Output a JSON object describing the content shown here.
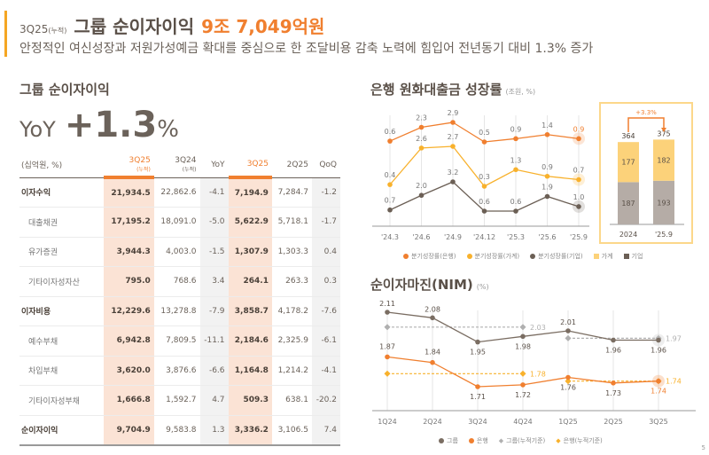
{
  "header": {
    "period": "3Q25",
    "period_note": "(누적)",
    "title": "그룹 순이자이익",
    "value": "9조 7,049억원",
    "subtitle": "안정적인 여신성장과 저원가성예금 확대를 중심으로 한 조달비용 감축 노력에 힘입어 전년동기 대비 1.3% 증가"
  },
  "left": {
    "section_title": "그룹 순이자이익",
    "yoy_label": "YoY",
    "yoy_value": "+1.3",
    "yoy_pct": "%",
    "table": {
      "unit": "(십억원, %)",
      "headers": [
        {
          "label": "3Q25",
          "sub": "(누적)"
        },
        {
          "label": "3Q24",
          "sub": "(누적)"
        },
        {
          "label": "YoY",
          "sub": ""
        },
        {
          "label": "3Q25",
          "sub": ""
        },
        {
          "label": "2Q25",
          "sub": ""
        },
        {
          "label": "QoQ",
          "sub": ""
        }
      ],
      "rows": [
        {
          "label": "이자수익",
          "type": "main",
          "values": [
            "21,934.5",
            "22,862.6",
            "-4.1",
            "7,194.9",
            "7,284.7",
            "-1.2"
          ]
        },
        {
          "label": "대출채권",
          "type": "sub",
          "values": [
            "17,195.2",
            "18,091.0",
            "-5.0",
            "5,622.9",
            "5,718.1",
            "-1.7"
          ]
        },
        {
          "label": "유가증권",
          "type": "sub",
          "values": [
            "3,944.3",
            "4,003.0",
            "-1.5",
            "1,307.9",
            "1,303.3",
            "0.4"
          ]
        },
        {
          "label": "기타이자성자산",
          "type": "sub",
          "values": [
            "795.0",
            "768.6",
            "3.4",
            "264.1",
            "263.3",
            "0.3"
          ]
        },
        {
          "label": "이자비용",
          "type": "main",
          "values": [
            "12,229.6",
            "13,278.8",
            "-7.9",
            "3,858.7",
            "4,178.2",
            "-7.6"
          ]
        },
        {
          "label": "예수부채",
          "type": "sub",
          "values": [
            "6,942.8",
            "7,809.5",
            "-11.1",
            "2,184.6",
            "2,325.9",
            "-6.1"
          ]
        },
        {
          "label": "차입부채",
          "type": "sub",
          "values": [
            "3,620.0",
            "3,876.6",
            "-6.6",
            "1,164.8",
            "1,214.2",
            "-4.1"
          ]
        },
        {
          "label": "기타이자성부채",
          "type": "sub",
          "values": [
            "1,666.8",
            "1,592.7",
            "4.7",
            "509.3",
            "638.1",
            "-20.2"
          ]
        },
        {
          "label": "순이자이익",
          "type": "main last",
          "values": [
            "9,704.9",
            "9,583.8",
            "1.3",
            "3,336.2",
            "3,106.5",
            "7.4"
          ]
        }
      ]
    }
  },
  "chart_data": [
    {
      "type": "line",
      "title": "은행 원화대출금 성장률",
      "unit": "(조원, %)",
      "x": [
        "'24.3",
        "'24.6",
        "'24.9",
        "'24.12",
        "'25.3",
        "'25.6",
        "'25.9"
      ],
      "series": [
        {
          "name": "분기성장률(은행)",
          "color": "#f07f2f",
          "values": [
            0.6,
            2.3,
            2.9,
            0.5,
            0.9,
            1.4,
            0.9
          ]
        },
        {
          "name": "분기성장률(가계)",
          "color": "#f8b12c",
          "values": [
            0.4,
            2.6,
            2.7,
            0.3,
            1.3,
            0.9,
            0.7
          ]
        },
        {
          "name": "분기성장률(기업)",
          "color": "#6b5f55",
          "values": [
            0.7,
            2.0,
            3.2,
            0.6,
            0.6,
            1.9,
            1.0
          ]
        }
      ]
    },
    {
      "type": "bar",
      "stacked": true,
      "categories": [
        "2024",
        "'25.9"
      ],
      "totals": [
        364,
        375
      ],
      "growth_label": "+3.3%",
      "series": [
        {
          "name": "기업",
          "color": "#b5aca6",
          "values": [
            187,
            193
          ]
        },
        {
          "name": "가계",
          "color": "#fcd27a",
          "values": [
            177,
            182
          ]
        }
      ]
    },
    {
      "type": "line",
      "title": "순이자마진(NIM)",
      "unit": "(%)",
      "x": [
        "1Q24",
        "2Q24",
        "3Q24",
        "4Q24",
        "1Q25",
        "2Q25",
        "3Q25"
      ],
      "series": [
        {
          "name": "그룹",
          "color": "#7a6d62",
          "values": [
            2.11,
            2.08,
            1.95,
            1.98,
            2.01,
            1.96,
            1.96
          ]
        },
        {
          "name": "은행",
          "color": "#f07f2f",
          "values": [
            1.87,
            1.84,
            1.71,
            1.72,
            1.76,
            1.73,
            1.74
          ]
        },
        {
          "name": "그룹(누적기준)",
          "color": "#b0b0b0",
          "dashed": true,
          "segments": [
            {
              "from": 0,
              "to": 3,
              "value": 2.03
            },
            {
              "from": 4,
              "to": 6,
              "value": 1.97
            }
          ]
        },
        {
          "name": "은행(누적기준)",
          "color": "#f8b12c",
          "dashed": true,
          "segments": [
            {
              "from": 0,
              "to": 3,
              "value": 1.78
            },
            {
              "from": 4,
              "to": 6,
              "value": 1.74
            }
          ]
        }
      ]
    }
  ],
  "legend1": [
    "분기성장률(은행)",
    "분기성장률(가계)",
    "분기성장률(기업)",
    "가계",
    "기업"
  ],
  "legend2": [
    "그룹",
    "은행",
    "그룹(누적기준)",
    "은행(누적기준)"
  ],
  "page_number": "5"
}
